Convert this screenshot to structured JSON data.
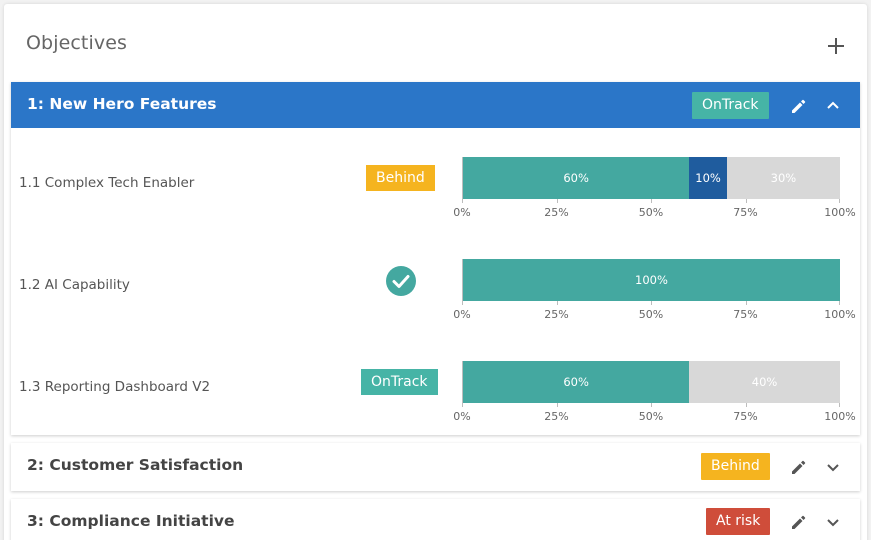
{
  "card": {
    "title": "Objectives",
    "add_icon": "plus-icon"
  },
  "colors": {
    "header_blue": "#2b76c8",
    "ontrack": "#46b4a6",
    "behind": "#f5b41f",
    "at_risk": "#cf4d3a",
    "progress_teal": "#44a8a0",
    "progress_blue": "#1f5c9e",
    "remaining_gray": "#d8d8d8"
  },
  "objectives": [
    {
      "title": "1: New Hero Features",
      "status": "OnTrack",
      "expanded": true,
      "key_results": [
        {
          "name": "1.1 Complex Tech Enabler",
          "status": "Behind",
          "segments": [
            {
              "label": "60%",
              "value": 60,
              "kind": "done"
            },
            {
              "label": "10%",
              "value": 10,
              "kind": "in_progress"
            },
            {
              "label": "30%",
              "value": 30,
              "kind": "remaining"
            }
          ]
        },
        {
          "name": "1.2 AI Capability",
          "status": "complete",
          "status_icon": "check-circle-icon",
          "segments": [
            {
              "label": "100%",
              "value": 100,
              "kind": "done"
            }
          ]
        },
        {
          "name": "1.3 Reporting Dashboard V2",
          "status": "OnTrack",
          "segments": [
            {
              "label": "60%",
              "value": 60,
              "kind": "done"
            },
            {
              "label": "40%",
              "value": 40,
              "kind": "remaining"
            }
          ]
        }
      ]
    },
    {
      "title": "2: Customer Satisfaction",
      "status": "Behind",
      "expanded": false
    },
    {
      "title": "3: Compliance Initiative",
      "status": "At risk",
      "expanded": false
    }
  ],
  "axis_ticks": [
    "0%",
    "25%",
    "50%",
    "75%",
    "100%"
  ],
  "icons": {
    "edit": "pencil-icon",
    "collapse": "chevron-up-icon",
    "expand": "chevron-down-icon"
  }
}
